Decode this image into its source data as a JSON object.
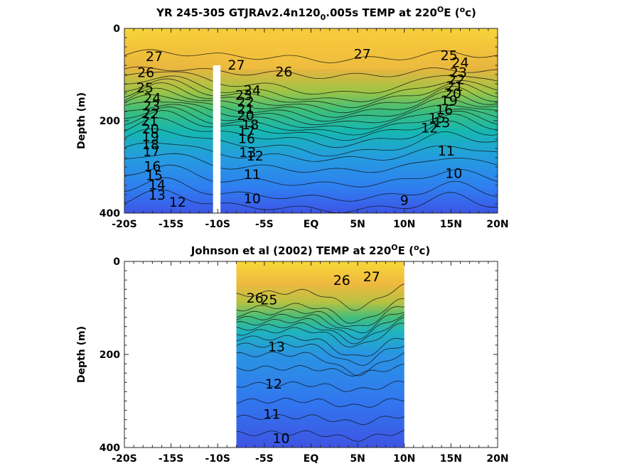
{
  "chart_data": [
    {
      "type": "contour",
      "title_parts": [
        "YR 245-305 GTJRAv2.4n120",
        "0",
        ".005s TEMP at 220",
        "O",
        "E (",
        "o",
        "c)"
      ],
      "xlabel": "",
      "ylabel": "Depth (m)",
      "x_ticks": [
        "-20S",
        "-15S",
        "-10S",
        "-5S",
        "EQ",
        "5N",
        "10N",
        "15N",
        "20N"
      ],
      "y_ticks": [
        "0",
        "200",
        "400"
      ],
      "xlim": [
        -20,
        20
      ],
      "ylim": [
        0,
        400
      ],
      "y_reversed": true,
      "data_extent_x": [
        -20,
        20
      ],
      "mask_strip_x": [
        -10.5,
        -9.7
      ],
      "mask_strip_depth_from": 80,
      "contour_labels": [
        {
          "text": "27",
          "x": -16.8,
          "y": 62
        },
        {
          "text": "26",
          "x": -17.7,
          "y": 97
        },
        {
          "text": "25",
          "x": -17.8,
          "y": 130
        },
        {
          "text": "24",
          "x": -17.0,
          "y": 152
        },
        {
          "text": "23",
          "x": -17.1,
          "y": 169
        },
        {
          "text": "22",
          "x": -17.2,
          "y": 186
        },
        {
          "text": "21",
          "x": -17.3,
          "y": 202
        },
        {
          "text": "20",
          "x": -17.2,
          "y": 219
        },
        {
          "text": "19",
          "x": -17.2,
          "y": 236
        },
        {
          "text": "18",
          "x": -17.2,
          "y": 253
        },
        {
          "text": "17",
          "x": -17.1,
          "y": 268
        },
        {
          "text": "16",
          "x": -17.0,
          "y": 300
        },
        {
          "text": "15",
          "x": -16.8,
          "y": 320
        },
        {
          "text": "14",
          "x": -16.5,
          "y": 340
        },
        {
          "text": "13",
          "x": -16.5,
          "y": 362
        },
        {
          "text": "12",
          "x": -14.3,
          "y": 378
        },
        {
          "text": "27",
          "x": -8.0,
          "y": 81
        },
        {
          "text": "26",
          "x": -2.9,
          "y": 95
        },
        {
          "text": "24",
          "x": -6.3,
          "y": 135
        },
        {
          "text": "23",
          "x": -7.2,
          "y": 146
        },
        {
          "text": "22",
          "x": -7.0,
          "y": 161
        },
        {
          "text": "21",
          "x": -7.0,
          "y": 176
        },
        {
          "text": "20",
          "x": -7.0,
          "y": 190
        },
        {
          "text": "18",
          "x": -6.5,
          "y": 210
        },
        {
          "text": "17",
          "x": -6.9,
          "y": 224
        },
        {
          "text": "16",
          "x": -6.9,
          "y": 240
        },
        {
          "text": "13",
          "x": -6.8,
          "y": 270
        },
        {
          "text": "12",
          "x": -6.0,
          "y": 278
        },
        {
          "text": "11",
          "x": -6.3,
          "y": 318
        },
        {
          "text": "10",
          "x": -6.3,
          "y": 370
        },
        {
          "text": "27",
          "x": 5.5,
          "y": 57
        },
        {
          "text": "9",
          "x": 10.0,
          "y": 374
        },
        {
          "text": "10",
          "x": 15.3,
          "y": 315
        },
        {
          "text": "11",
          "x": 14.5,
          "y": 267
        },
        {
          "text": "12",
          "x": 12.7,
          "y": 217
        },
        {
          "text": "13",
          "x": 14.0,
          "y": 205
        },
        {
          "text": "25",
          "x": 14.8,
          "y": 60
        },
        {
          "text": "24",
          "x": 16.0,
          "y": 75
        },
        {
          "text": "23",
          "x": 15.8,
          "y": 97
        },
        {
          "text": "22",
          "x": 15.6,
          "y": 112
        },
        {
          "text": "21",
          "x": 15.4,
          "y": 127
        },
        {
          "text": "20",
          "x": 15.2,
          "y": 142
        },
        {
          "text": "19",
          "x": 14.8,
          "y": 158
        },
        {
          "text": "16",
          "x": 14.3,
          "y": 178
        },
        {
          "text": "15",
          "x": 13.5,
          "y": 195
        }
      ]
    },
    {
      "type": "contour",
      "title_parts": [
        "Johnson et al (2002) TEMP at 220",
        "O",
        "E (",
        "o",
        "c)"
      ],
      "xlabel": "",
      "ylabel": "Depth (m)",
      "x_ticks": [
        "-20S",
        "-15S",
        "-10S",
        "-5S",
        "EQ",
        "5N",
        "10N",
        "15N",
        "20N"
      ],
      "y_ticks": [
        "0",
        "200",
        "400"
      ],
      "xlim": [
        -20,
        20
      ],
      "ylim": [
        0,
        400
      ],
      "y_reversed": true,
      "data_extent_x": [
        -8,
        10
      ],
      "contour_labels": [
        {
          "text": "26",
          "x": 3.3,
          "y": 42
        },
        {
          "text": "27",
          "x": 6.5,
          "y": 34
        },
        {
          "text": "26",
          "x": -6.0,
          "y": 80
        },
        {
          "text": "25",
          "x": -4.5,
          "y": 84
        },
        {
          "text": "13",
          "x": -3.7,
          "y": 185
        },
        {
          "text": "12",
          "x": -4.0,
          "y": 265
        },
        {
          "text": "11",
          "x": -4.2,
          "y": 330
        },
        {
          "text": "10",
          "x": -3.2,
          "y": 382
        }
      ]
    }
  ]
}
